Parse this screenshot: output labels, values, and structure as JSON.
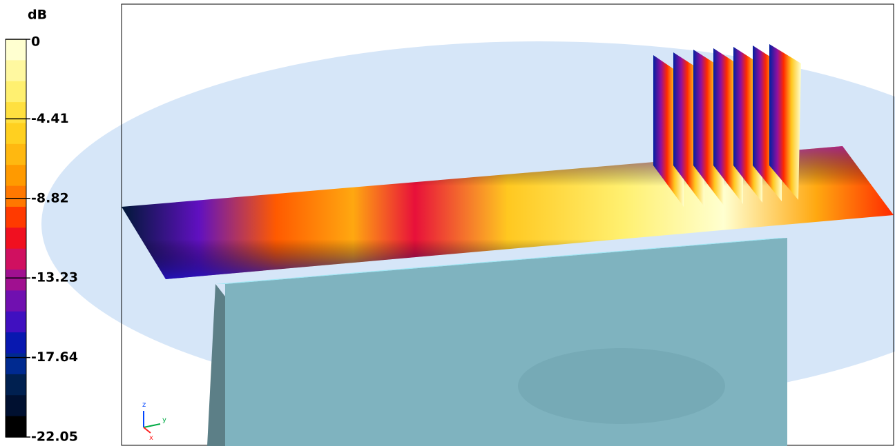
{
  "colorbar": {
    "unit": "dB",
    "ticks": [
      0,
      -4.41,
      -8.82,
      -13.23,
      -17.64,
      -22.05
    ]
  },
  "axes_triad": {
    "labels": [
      "z",
      "y",
      "x"
    ]
  }
}
